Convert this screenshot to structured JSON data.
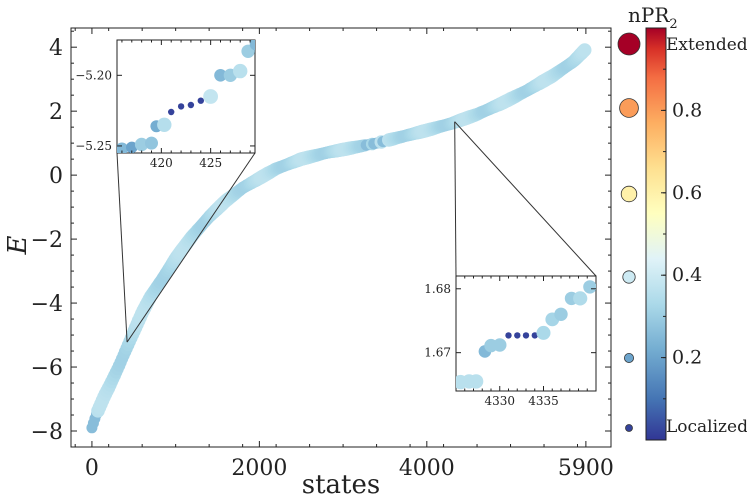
{
  "chart_data": {
    "type": "scatter",
    "title": "",
    "xlabel": "states",
    "ylabel": "E",
    "xlim": [
      -250,
      6200
    ],
    "ylim": [
      -8.5,
      4.6
    ],
    "x_ticks": [
      0,
      2000,
      4000,
      5900
    ],
    "y_ticks": [
      4,
      2,
      0,
      -2,
      -4,
      -6,
      -8
    ],
    "y_tick_labels": [
      "4",
      "2",
      "0",
      "−2",
      "−4",
      "−6",
      "−8"
    ],
    "x_tick_labels": [
      "0",
      "2000",
      "4000",
      "5900"
    ],
    "curve_points": [
      [
        0,
        -7.9
      ],
      [
        50,
        -7.5
      ],
      [
        100,
        -7.2
      ],
      [
        150,
        -6.9
      ],
      [
        200,
        -6.65
      ],
      [
        300,
        -6.1
      ],
      [
        400,
        -5.5
      ],
      [
        500,
        -4.9
      ],
      [
        600,
        -4.3
      ],
      [
        700,
        -3.8
      ],
      [
        800,
        -3.4
      ],
      [
        900,
        -3.0
      ],
      [
        1000,
        -2.6
      ],
      [
        1200,
        -1.9
      ],
      [
        1400,
        -1.3
      ],
      [
        1600,
        -0.8
      ],
      [
        1800,
        -0.4
      ],
      [
        2000,
        -0.1
      ],
      [
        2200,
        0.2
      ],
      [
        2500,
        0.5
      ],
      [
        2800,
        0.7
      ],
      [
        3100,
        0.85
      ],
      [
        3400,
        1.0
      ],
      [
        3700,
        1.2
      ],
      [
        4000,
        1.4
      ],
      [
        4300,
        1.62
      ],
      [
        4600,
        1.9
      ],
      [
        4900,
        2.25
      ],
      [
        5200,
        2.65
      ],
      [
        5500,
        3.1
      ],
      [
        5750,
        3.55
      ],
      [
        5900,
        3.95
      ]
    ],
    "highlighted_darker_states": [
      10,
      20,
      30,
      3300,
      3400,
      3500
    ],
    "inset_low": {
      "xlim": [
        415.5,
        429.5
      ],
      "ylim": [
        -5.255,
        -5.175
      ],
      "x_ticks": [
        420,
        425
      ],
      "y_ticks": [
        -5.2,
        -5.25
      ],
      "y_tick_labels": [
        "−5.20",
        "−5.25"
      ],
      "points": [
        {
          "x": 416,
          "y": -5.252,
          "npr": 0.25
        },
        {
          "x": 417,
          "y": -5.251,
          "npr": 0.2
        },
        {
          "x": 418,
          "y": -5.249,
          "npr": 0.3
        },
        {
          "x": 419,
          "y": -5.248,
          "npr": 0.28
        },
        {
          "x": 419.5,
          "y": -5.236,
          "npr": 0.22
        },
        {
          "x": 420.3,
          "y": -5.235,
          "npr": 0.35
        },
        {
          "x": 421,
          "y": -5.226,
          "npr": 0.02
        },
        {
          "x": 422,
          "y": -5.222,
          "npr": 0.02
        },
        {
          "x": 423,
          "y": -5.221,
          "npr": 0.02
        },
        {
          "x": 424,
          "y": -5.218,
          "npr": 0.02
        },
        {
          "x": 425,
          "y": -5.215,
          "npr": 0.38
        },
        {
          "x": 426,
          "y": -5.2,
          "npr": 0.25
        },
        {
          "x": 427,
          "y": -5.2,
          "npr": 0.3
        },
        {
          "x": 428,
          "y": -5.197,
          "npr": 0.36
        },
        {
          "x": 428.8,
          "y": -5.183,
          "npr": 0.3
        },
        {
          "x": 429.6,
          "y": -5.178,
          "npr": 0.25
        }
      ]
    },
    "inset_high": {
      "xlim": [
        4325,
        4341
      ],
      "ylim": [
        1.664,
        1.682
      ],
      "x_ticks": [
        4330,
        4335
      ],
      "y_ticks": [
        1.68,
        1.67
      ],
      "y_tick_labels": [
        "1.68",
        "1.67"
      ],
      "points": [
        {
          "x": 4325.5,
          "y": 1.6654,
          "npr": 0.36
        },
        {
          "x": 4326.5,
          "y": 1.6655,
          "npr": 0.36
        },
        {
          "x": 4327.3,
          "y": 1.6655,
          "npr": 0.36
        },
        {
          "x": 4328.3,
          "y": 1.6702,
          "npr": 0.25
        },
        {
          "x": 4329.0,
          "y": 1.6711,
          "npr": 0.3
        },
        {
          "x": 4330.0,
          "y": 1.6712,
          "npr": 0.3
        },
        {
          "x": 4331.0,
          "y": 1.6727,
          "npr": 0.02
        },
        {
          "x": 4332.0,
          "y": 1.6727,
          "npr": 0.02
        },
        {
          "x": 4333.0,
          "y": 1.6727,
          "npr": 0.02
        },
        {
          "x": 4334.0,
          "y": 1.6727,
          "npr": 0.02
        },
        {
          "x": 4335.0,
          "y": 1.6731,
          "npr": 0.33
        },
        {
          "x": 4336.0,
          "y": 1.6752,
          "npr": 0.32
        },
        {
          "x": 4337.0,
          "y": 1.676,
          "npr": 0.3
        },
        {
          "x": 4338.2,
          "y": 1.6785,
          "npr": 0.3
        },
        {
          "x": 4339.2,
          "y": 1.6785,
          "npr": 0.34
        },
        {
          "x": 4340.3,
          "y": 1.6803,
          "npr": 0.3
        }
      ]
    },
    "colorbar": {
      "title": "nPR",
      "title_sub": "2",
      "ticks": [
        0.2,
        0.4,
        0.6,
        0.8
      ],
      "tick_labels": [
        "0.2",
        "0.4",
        "0.6",
        "0.8"
      ],
      "top_label": "Extended",
      "bottom_label": "Localized",
      "legend_sizes": [
        1.0,
        0.8,
        0.6,
        0.4,
        0.2,
        0.02
      ]
    }
  }
}
